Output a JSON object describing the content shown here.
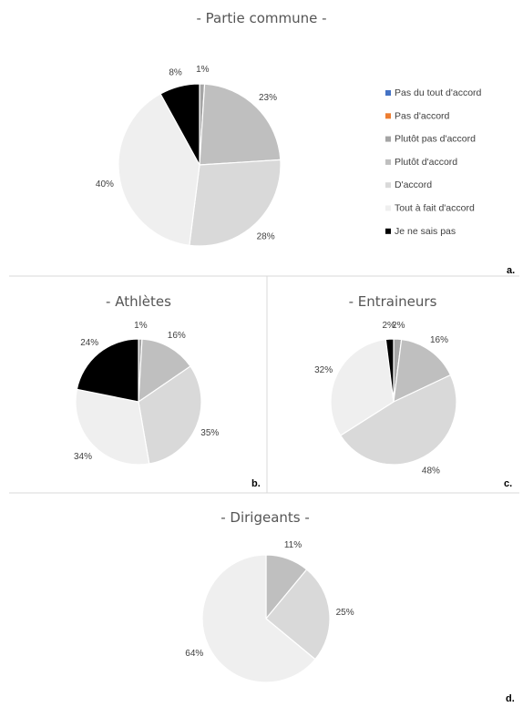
{
  "legend": {
    "items": [
      {
        "label": "Pas du tout d'accord",
        "color": "#4472c4"
      },
      {
        "label": "Pas d'accord",
        "color": "#ed7d31"
      },
      {
        "label": "Plutôt pas d'accord",
        "color": "#a5a5a5"
      },
      {
        "label": "Plutôt d'accord",
        "color": "#bfbfbf"
      },
      {
        "label": "D'accord",
        "color": "#d9d9d9"
      },
      {
        "label": "Tout à fait d'accord",
        "color": "#efefef"
      },
      {
        "label": "Je ne sais pas",
        "color": "#000000"
      }
    ]
  },
  "chart_data": [
    {
      "type": "pie",
      "title": "- Partie commune -",
      "panel": "a.",
      "slices": [
        {
          "category": "Plutôt pas d'accord",
          "value": 1,
          "label": "1%",
          "color": "#a5a5a5"
        },
        {
          "category": "Plutôt d'accord",
          "value": 23,
          "label": "23%",
          "color": "#bfbfbf"
        },
        {
          "category": "D'accord",
          "value": 28,
          "label": "28%",
          "color": "#d9d9d9"
        },
        {
          "category": "Tout à fait d'accord",
          "value": 40,
          "label": "40%",
          "color": "#efefef"
        },
        {
          "category": "Je ne sais pas",
          "value": 8,
          "label": "8%",
          "color": "#000000"
        }
      ]
    },
    {
      "type": "pie",
      "title": "- Athlètes",
      "panel": "b.",
      "slices": [
        {
          "category": "Plutôt pas d'accord",
          "value": 1,
          "label": "1%",
          "color": "#a5a5a5"
        },
        {
          "category": "Plutôt d'accord",
          "value": 16,
          "label": "16%",
          "color": "#bfbfbf"
        },
        {
          "category": "D'accord",
          "value": 35,
          "label": "35%",
          "color": "#d9d9d9"
        },
        {
          "category": "Tout à fait d'accord",
          "value": 34,
          "label": "34%",
          "color": "#efefef"
        },
        {
          "category": "Je ne sais pas",
          "value": 24,
          "label": "24%",
          "color": "#000000"
        }
      ]
    },
    {
      "type": "pie",
      "title": "- Entraineurs",
      "panel": "c.",
      "slices": [
        {
          "category": "Plutôt pas d'accord",
          "value": 2,
          "label": "2%",
          "color": "#a5a5a5"
        },
        {
          "category": "Plutôt d'accord",
          "value": 16,
          "label": "16%",
          "color": "#bfbfbf"
        },
        {
          "category": "D'accord",
          "value": 48,
          "label": "48%",
          "color": "#d9d9d9"
        },
        {
          "category": "Tout à fait d'accord",
          "value": 32,
          "label": "32%",
          "color": "#efefef"
        },
        {
          "category": "Je ne sais pas",
          "value": 2,
          "label": "2%",
          "color": "#000000"
        }
      ]
    },
    {
      "type": "pie",
      "title": "- Dirigeants -",
      "panel": "d.",
      "slices": [
        {
          "category": "Plutôt d'accord",
          "value": 11,
          "label": "11%",
          "color": "#bfbfbf"
        },
        {
          "category": "D'accord",
          "value": 25,
          "label": "25%",
          "color": "#d9d9d9"
        },
        {
          "category": "Tout à fait d'accord",
          "value": 64,
          "label": "64%",
          "color": "#efefef"
        }
      ]
    }
  ]
}
